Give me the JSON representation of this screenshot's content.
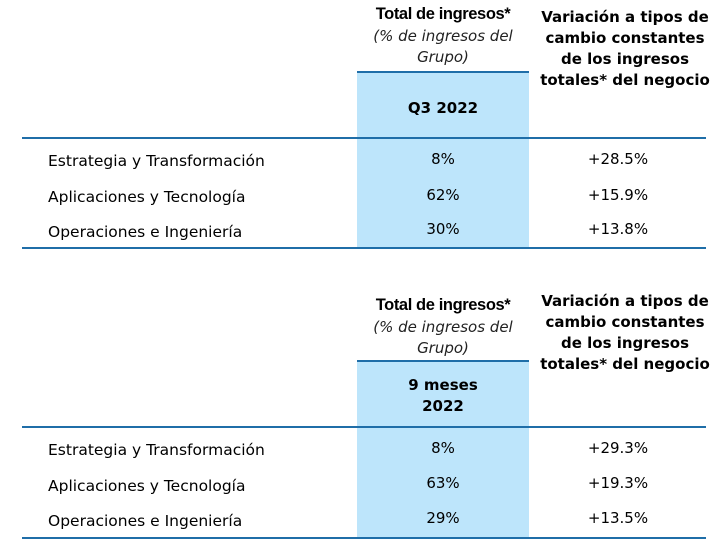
{
  "tables": [
    {
      "header_total": "Total de ingresos*",
      "header_total_sub": "(% de ingresos del Grupo)",
      "header_var": "Variación a tipos de cambio constantes de los ingresos totales* del negocio",
      "period": "Q3 2022",
      "rows": [
        {
          "label": "Estrategia y Transformación",
          "share": "8%",
          "change": "+28.5%"
        },
        {
          "label": "Aplicaciones y Tecnología",
          "share": "62%",
          "change": "+15.9%"
        },
        {
          "label": "Operaciones e Ingeniería",
          "share": "30%",
          "change": "+13.8%"
        }
      ]
    },
    {
      "header_total": "Total de ingresos*",
      "header_total_sub": "(% de ingresos del Grupo)",
      "header_var": "Variación a tipos de cambio constantes de los ingresos totales* del negocio",
      "period": "9 meses 2022",
      "rows": [
        {
          "label": "Estrategia y Transformación",
          "share": "8%",
          "change": "+29.3%"
        },
        {
          "label": "Aplicaciones y Tecnología",
          "share": "63%",
          "change": "+19.3%"
        },
        {
          "label": "Operaciones e Ingeniería",
          "share": "29%",
          "change": "+13.5%"
        }
      ]
    }
  ]
}
